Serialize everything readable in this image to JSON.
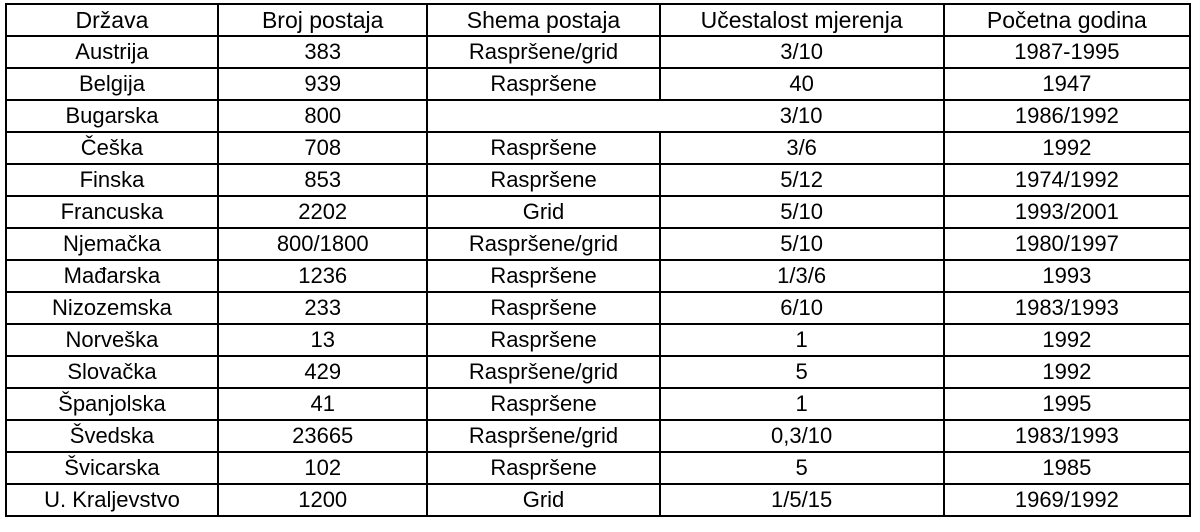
{
  "table": {
    "border_color": "#000000",
    "text_color": "#000000",
    "background_color": "#ffffff",
    "columns": [
      {
        "label": "Država"
      },
      {
        "label": "Broj postaja"
      },
      {
        "label": "Shema postaja"
      },
      {
        "label": "Učestalost mjerenja"
      },
      {
        "label": "Početna godina"
      }
    ],
    "rows": [
      {
        "cells": [
          "Austrija",
          "383",
          "Raspršene/grid",
          "3/10",
          "1987-1995"
        ]
      },
      {
        "cells": [
          "Belgija",
          "939",
          "Raspršene",
          "40",
          "1947"
        ]
      },
      {
        "cells": [
          "Bugarska",
          "800",
          "",
          "3/10",
          "1986/1992"
        ],
        "hide_divider_after": 2
      },
      {
        "cells": [
          "Češka",
          "708",
          "Raspršene",
          "3/6",
          "1992"
        ]
      },
      {
        "cells": [
          "Finska",
          "853",
          "Raspršene",
          "5/12",
          "1974/1992"
        ]
      },
      {
        "cells": [
          "Francuska",
          "2202",
          "Grid",
          "5/10",
          "1993/2001"
        ]
      },
      {
        "cells": [
          "Njemačka",
          "800/1800",
          "Raspršene/grid",
          "5/10",
          "1980/1997"
        ]
      },
      {
        "cells": [
          "Mađarska",
          "1236",
          "Raspršene",
          "1/3/6",
          "1993"
        ]
      },
      {
        "cells": [
          "Nizozemska",
          "233",
          "Raspršene",
          "6/10",
          "1983/1993"
        ]
      },
      {
        "cells": [
          "Norveška",
          "13",
          "Raspršene",
          "1",
          "1992"
        ]
      },
      {
        "cells": [
          "Slovačka",
          "429",
          "Raspršene/grid",
          "5",
          "1992"
        ]
      },
      {
        "cells": [
          "Španjolska",
          "41",
          "Raspršene",
          "1",
          "1995"
        ]
      },
      {
        "cells": [
          "Švedska",
          "23665",
          "Raspršene/grid",
          "0,3/10",
          "1983/1993"
        ]
      },
      {
        "cells": [
          "Švicarska",
          "102",
          "Raspršene",
          "5",
          "1985"
        ]
      },
      {
        "cells": [
          "U. Kraljevstvo",
          "1200",
          "Grid",
          "1/5/15",
          "1969/1992"
        ]
      }
    ]
  }
}
